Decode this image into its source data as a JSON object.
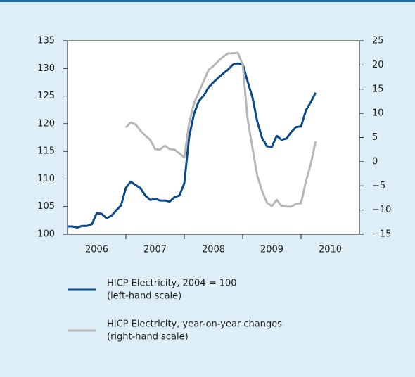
{
  "chart_data": {
    "type": "line",
    "x": [
      2006,
      2006.083,
      2006.167,
      2006.25,
      2006.333,
      2006.417,
      2006.5,
      2006.583,
      2006.667,
      2006.75,
      2006.833,
      2006.917,
      2007,
      2007.083,
      2007.167,
      2007.25,
      2007.333,
      2007.417,
      2007.5,
      2007.583,
      2007.667,
      2007.75,
      2007.833,
      2007.917,
      2008,
      2008.083,
      2008.167,
      2008.25,
      2008.333,
      2008.417,
      2008.5,
      2008.583,
      2008.667,
      2008.75,
      2008.833,
      2008.917,
      2009,
      2009.083,
      2009.167,
      2009.25,
      2009.333,
      2009.417,
      2009.5,
      2009.583,
      2009.667,
      2009.75,
      2009.833,
      2009.917,
      2010,
      2010.083,
      2010.167,
      2010.25
    ],
    "series": [
      {
        "name": "HICP Electricity, 2004 = 100",
        "scale_label": "(left-hand scale)",
        "color": "#0b4a8b",
        "axis": "y",
        "values": [
          101.4,
          101.4,
          101.2,
          101.5,
          101.5,
          101.8,
          103.8,
          103.7,
          102.9,
          103.3,
          104.3,
          105.2,
          108.4,
          109.5,
          108.9,
          108.3,
          107.0,
          106.2,
          106.4,
          106.1,
          106.1,
          105.9,
          106.7,
          107.0,
          109.2,
          117.6,
          121.8,
          124.1,
          125.1,
          126.6,
          127.5,
          128.3,
          129.1,
          129.8,
          130.7,
          130.9,
          130.8,
          127.7,
          124.8,
          120.4,
          117.4,
          115.9,
          115.8,
          117.8,
          117.1,
          117.3,
          118.5,
          119.4,
          119.5,
          122.4,
          123.9,
          125.6
        ]
      },
      {
        "name": "HICP Electricity, year-on-year changes",
        "scale_label": "(right-hand scale)",
        "color": "#b7b7b7",
        "axis": "y2",
        "values": [
          null,
          null,
          null,
          null,
          null,
          null,
          null,
          null,
          null,
          null,
          null,
          null,
          7.1,
          8.1,
          7.7,
          6.4,
          5.4,
          4.5,
          2.6,
          2.5,
          3.3,
          2.6,
          2.5,
          1.7,
          0.9,
          8.0,
          12.1,
          14.4,
          16.7,
          19.0,
          19.8,
          20.8,
          21.7,
          22.4,
          22.4,
          22.5,
          20.1,
          9.0,
          2.9,
          -2.9,
          -6.1,
          -8.5,
          -9.2,
          -7.9,
          -9.2,
          -9.3,
          -9.3,
          -8.7,
          -8.6,
          -4.1,
          -0.5,
          4.2
        ]
      }
    ],
    "xlim": [
      2006,
      2011
    ],
    "xticks": [
      {
        "value": 2006.5,
        "label": "2006"
      },
      {
        "value": 2007.5,
        "label": "2007"
      },
      {
        "value": 2008.5,
        "label": "2008"
      },
      {
        "value": 2009.5,
        "label": "2009"
      },
      {
        "value": 2010.5,
        "label": "2010"
      }
    ],
    "ylim": [
      100,
      135
    ],
    "yticks": [
      100,
      105,
      110,
      115,
      120,
      125,
      130,
      135
    ],
    "y2lim": [
      -15,
      25
    ],
    "y2ticks": [
      {
        "value": -15,
        "label": "−15"
      },
      {
        "value": -10,
        "label": "−10"
      },
      {
        "value": -5,
        "label": "−5"
      },
      0,
      5,
      10,
      15,
      20,
      25
    ]
  }
}
